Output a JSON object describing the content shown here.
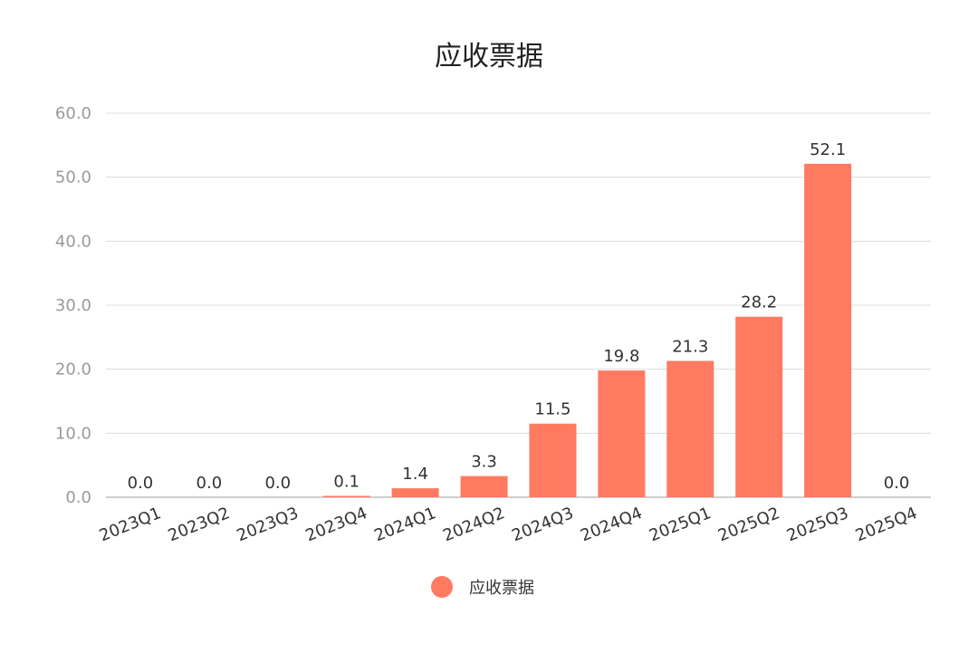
{
  "chart_data": {
    "type": "bar",
    "title": "应收票据",
    "categories": [
      "2023Q1",
      "2023Q2",
      "2023Q3",
      "2023Q4",
      "2024Q1",
      "2024Q2",
      "2024Q3",
      "2024Q4",
      "2025Q1",
      "2025Q2",
      "2025Q3",
      "2025Q4"
    ],
    "series": [
      {
        "name": "应收票据",
        "values": [
          0.0,
          0.0,
          0.0,
          0.1,
          1.4,
          3.3,
          11.5,
          19.8,
          21.3,
          28.2,
          52.1,
          0.0
        ],
        "labels": [
          "0.0",
          "0.0",
          "0.0",
          "0.1",
          "1.4",
          "3.3",
          "11.5",
          "19.8",
          "21.3",
          "28.2",
          "52.1",
          "0.0"
        ],
        "color": "#ff7a60"
      }
    ],
    "ylim": [
      0,
      60
    ],
    "yticks": [
      "0.0",
      "10.0",
      "20.0",
      "30.0",
      "40.0",
      "50.0",
      "60.0"
    ],
    "grid": true,
    "legend": "bottom-center"
  }
}
